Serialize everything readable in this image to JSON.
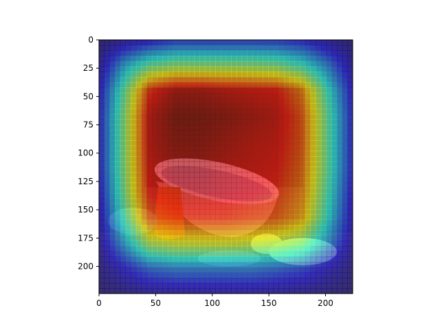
{
  "chart_data": {
    "type": "heatmap",
    "subtype": "image-with-attention-overlay",
    "colormap": "jet",
    "overlay_alpha": 0.55,
    "image_size": [
      224,
      224
    ],
    "xlim": [
      0,
      224
    ],
    "ylim": [
      224,
      0
    ],
    "origin": "upper",
    "grid": false,
    "legend": "none",
    "x_ticks": [
      0,
      50,
      100,
      150,
      200
    ],
    "y_ticks": [
      0,
      25,
      50,
      75,
      100,
      125,
      150,
      175,
      200
    ],
    "title": "",
    "xlabel": "",
    "ylabel": "",
    "colors": {
      "background_scene": "#6b5a3d",
      "wall_dark": "#3e3324",
      "table": "#7a6446",
      "bowl_rim": "#d9cbd8",
      "bowl_pattern": "#5a5f9a",
      "bowl_body": "#b79782",
      "jug": "#b8742a",
      "fruit": "#e6dd7a",
      "cloth": "#9a8f73"
    },
    "heatmap_grid": [
      [
        0.0,
        0.05,
        0.1,
        0.15,
        0.15,
        0.15,
        0.15,
        0.15,
        0.12,
        0.05,
        0.0
      ],
      [
        0.05,
        0.3,
        0.45,
        0.5,
        0.5,
        0.5,
        0.5,
        0.48,
        0.4,
        0.25,
        0.05
      ],
      [
        0.1,
        0.45,
        0.85,
        0.95,
        0.95,
        0.92,
        0.9,
        0.88,
        0.75,
        0.4,
        0.1
      ],
      [
        0.12,
        0.5,
        0.92,
        1.0,
        1.0,
        0.98,
        0.95,
        0.92,
        0.8,
        0.45,
        0.12
      ],
      [
        0.12,
        0.5,
        0.92,
        0.98,
        0.98,
        0.95,
        0.92,
        0.9,
        0.8,
        0.45,
        0.12
      ],
      [
        0.12,
        0.5,
        0.9,
        0.95,
        0.95,
        0.92,
        0.9,
        0.88,
        0.78,
        0.45,
        0.12
      ],
      [
        0.1,
        0.48,
        0.88,
        0.92,
        0.92,
        0.9,
        0.88,
        0.85,
        0.75,
        0.42,
        0.1
      ],
      [
        0.08,
        0.42,
        0.8,
        0.85,
        0.85,
        0.85,
        0.82,
        0.8,
        0.7,
        0.38,
        0.08
      ],
      [
        0.05,
        0.3,
        0.55,
        0.6,
        0.6,
        0.6,
        0.58,
        0.55,
        0.48,
        0.28,
        0.05
      ],
      [
        0.02,
        0.12,
        0.22,
        0.25,
        0.25,
        0.25,
        0.25,
        0.22,
        0.18,
        0.1,
        0.02
      ],
      [
        0.0,
        0.02,
        0.05,
        0.06,
        0.06,
        0.06,
        0.06,
        0.05,
        0.04,
        0.02,
        0.0
      ]
    ]
  }
}
